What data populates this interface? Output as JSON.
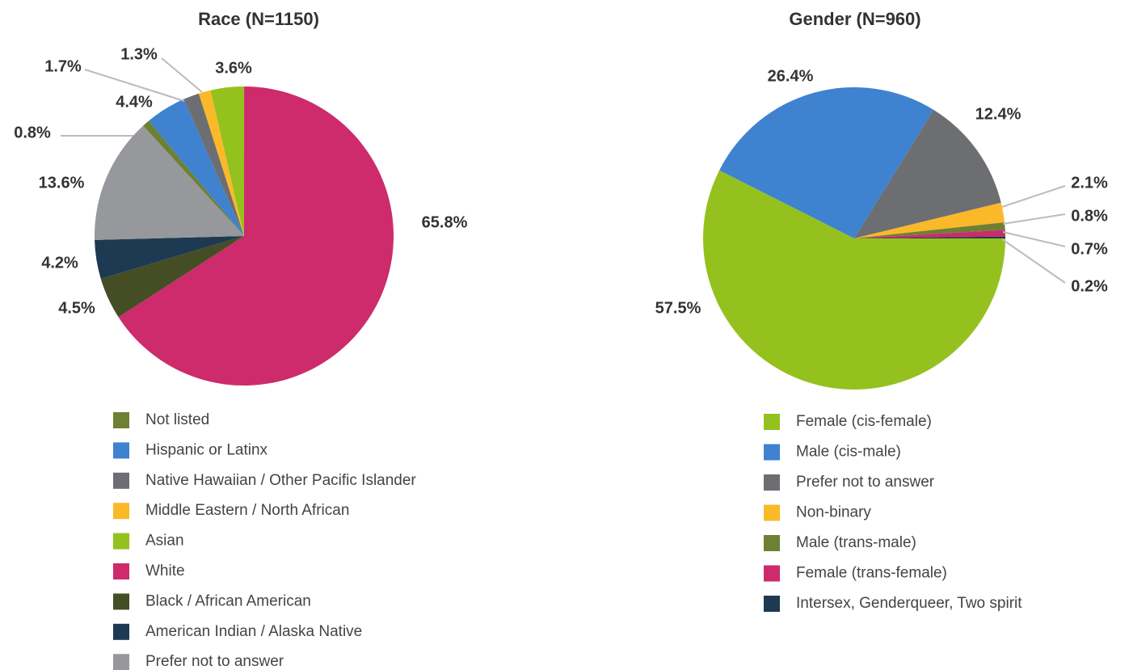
{
  "chart_data": [
    {
      "type": "pie",
      "title": "Race (N=1150)",
      "startangle": 317.5,
      "direction": "clockwise",
      "categories": [
        "Not listed",
        "Hispanic or Latinx",
        "Native Hawaiian / Other Pacific Islander",
        "Middle Eastern / North African",
        "Asian",
        "White",
        "Black / African American",
        "American Indian / Alaska Native",
        "Prefer not to answer"
      ],
      "values": [
        0.8,
        4.4,
        1.7,
        1.3,
        3.6,
        65.8,
        4.5,
        4.2,
        13.6
      ],
      "value_labels": [
        "0.8%",
        "4.4%",
        "1.7%",
        "1.3%",
        "3.6%",
        "65.8%",
        "4.5%",
        "4.2%",
        "13.6%"
      ],
      "colors": [
        "#6e8033",
        "#3e82d0",
        "#6d6e72",
        "#fbb829",
        "#95c11f",
        "#cd2b6b",
        "#444d24",
        "#1e3a52",
        "#97989b"
      ],
      "legend": "bottom"
    },
    {
      "type": "pie",
      "title": "Gender (N=960)",
      "startangle": 90,
      "direction": "clockwise",
      "categories": [
        "Female (cis-female)",
        "Male (cis-male)",
        "Prefer not to answer",
        "Non-binary",
        "Male (trans-male)",
        "Female (trans-female)",
        "Intersex, Genderqueer, Two spirit"
      ],
      "values": [
        57.5,
        26.4,
        12.4,
        2.1,
        0.8,
        0.7,
        0.2
      ],
      "value_labels": [
        "57.5%",
        "26.4%",
        "12.4%",
        "2.1%",
        "0.8%",
        "0.7%",
        "0.2%"
      ],
      "colors": [
        "#95c11f",
        "#3e82d0",
        "#6d6e72",
        "#fbb829",
        "#6e8033",
        "#cd2b6b",
        "#1e3a52"
      ],
      "legend": "bottom"
    }
  ]
}
